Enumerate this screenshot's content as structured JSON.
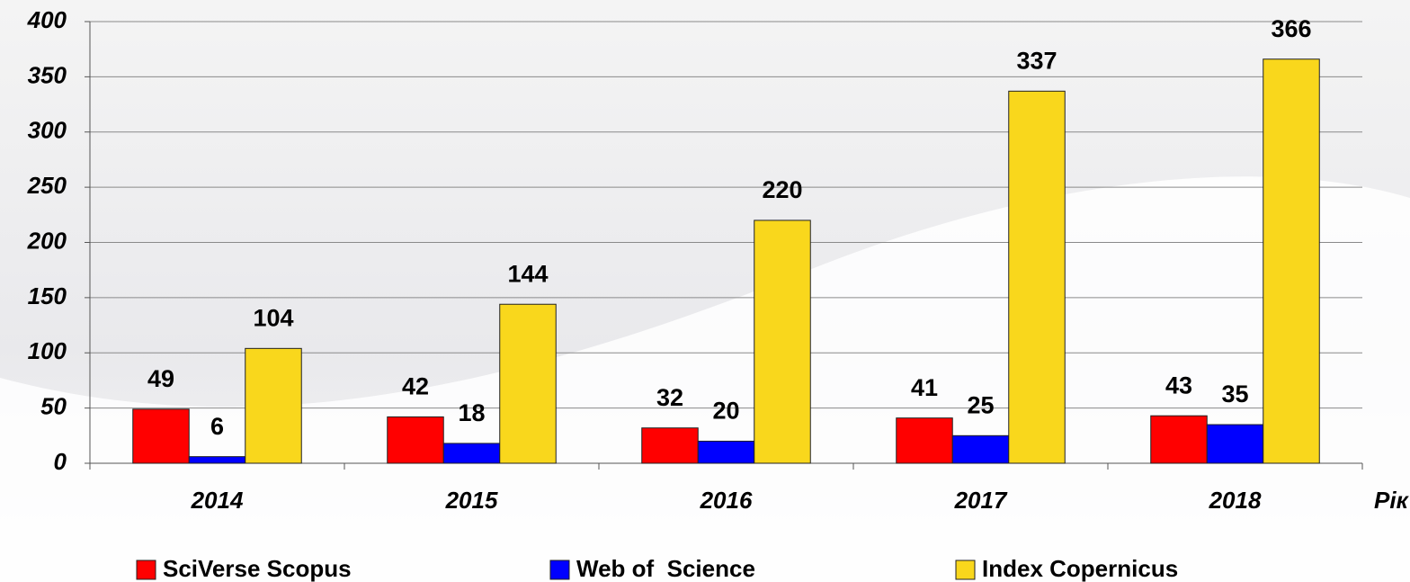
{
  "chart_data": {
    "type": "bar",
    "categories": [
      "2014",
      "2015",
      "2016",
      "2017",
      "2018"
    ],
    "x_label": "Рік",
    "series": [
      {
        "name": "SciVerse Scopus",
        "color": "#ff0000",
        "values": [
          49,
          42,
          32,
          41,
          43
        ]
      },
      {
        "name": "Web of  Science",
        "color": "#0000ff",
        "values": [
          6,
          18,
          20,
          25,
          35
        ]
      },
      {
        "name": "Index Copernicus",
        "color": "#f9d71c",
        "values": [
          104,
          144,
          220,
          337,
          366
        ]
      }
    ],
    "ylim": [
      0,
      400
    ],
    "yticks": [
      0,
      50,
      100,
      150,
      200,
      250,
      300,
      350,
      400
    ],
    "grid": true,
    "legend": "bottom"
  }
}
